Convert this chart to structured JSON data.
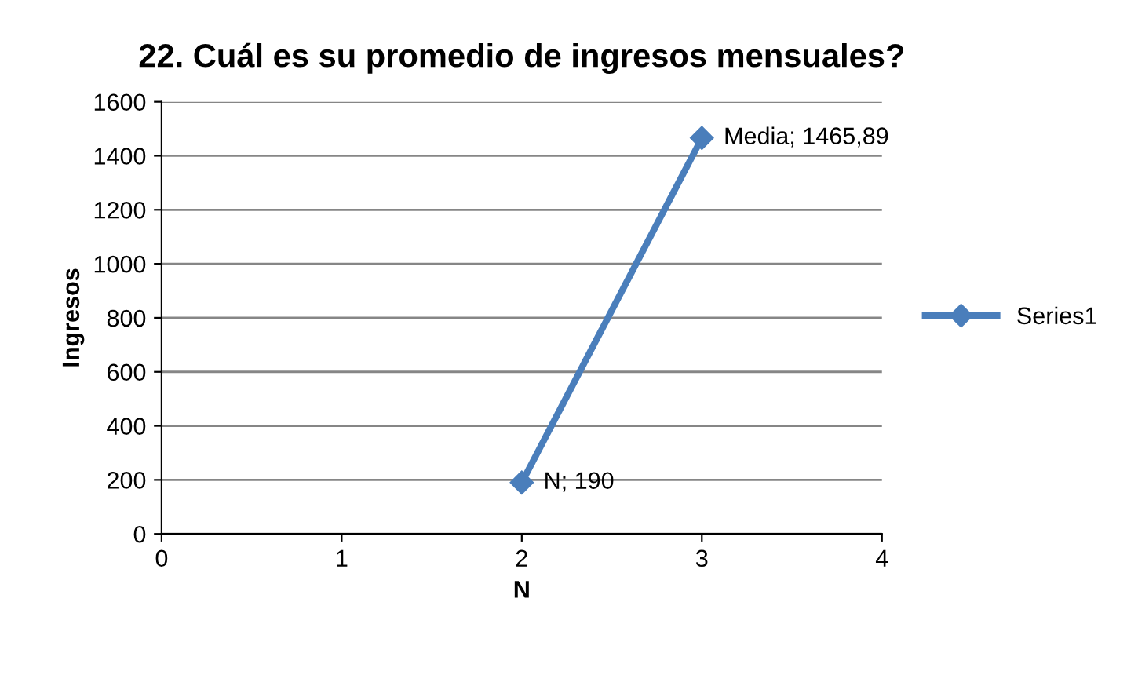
{
  "chart_data": {
    "type": "line",
    "title": "22. Cuál es su promedio de ingresos mensuales?",
    "xlabel": "N",
    "ylabel": "Ingresos",
    "x": [
      2,
      3
    ],
    "series": [
      {
        "name": "Series1",
        "color": "#4a7ebb",
        "values": [
          190,
          1465.89
        ],
        "value_labels": [
          "N; 190",
          "Media; 1465,89"
        ]
      }
    ],
    "xlim": [
      0,
      4
    ],
    "xticks": [
      0,
      1,
      2,
      3,
      4
    ],
    "ylim": [
      0,
      1600
    ],
    "yticks": [
      0,
      200,
      400,
      600,
      800,
      1000,
      1200,
      1400,
      1600
    ],
    "grid": "y",
    "legend": "right",
    "marker": "diamond",
    "line_style": "solid"
  }
}
